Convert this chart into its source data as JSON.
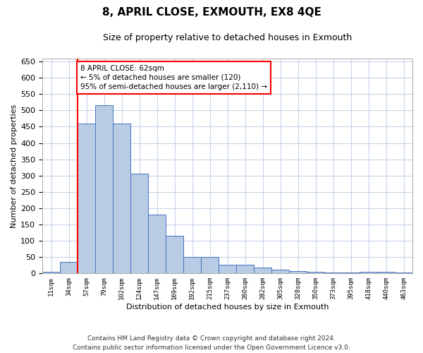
{
  "title": "8, APRIL CLOSE, EXMOUTH, EX8 4QE",
  "subtitle": "Size of property relative to detached houses in Exmouth",
  "xlabel": "Distribution of detached houses by size in Exmouth",
  "ylabel": "Number of detached properties",
  "categories": [
    "11sqm",
    "34sqm",
    "57sqm",
    "79sqm",
    "102sqm",
    "124sqm",
    "147sqm",
    "169sqm",
    "192sqm",
    "215sqm",
    "237sqm",
    "260sqm",
    "282sqm",
    "305sqm",
    "328sqm",
    "350sqm",
    "373sqm",
    "395sqm",
    "418sqm",
    "440sqm",
    "463sqm"
  ],
  "values": [
    5,
    35,
    460,
    515,
    460,
    305,
    180,
    115,
    50,
    50,
    27,
    27,
    18,
    12,
    8,
    5,
    2,
    2,
    5,
    5,
    2
  ],
  "bar_color": "#b8cce4",
  "bar_edge_color": "#4472c4",
  "vline_x_index": 2,
  "annotation_box_text": "8 APRIL CLOSE: 62sqm\n← 5% of detached houses are smaller (120)\n95% of semi-detached houses are larger (2,110) →",
  "ylim": [
    0,
    660
  ],
  "yticks": [
    0,
    50,
    100,
    150,
    200,
    250,
    300,
    350,
    400,
    450,
    500,
    550,
    600,
    650
  ],
  "footer_line1": "Contains HM Land Registry data © Crown copyright and database right 2024.",
  "footer_line2": "Contains public sector information licensed under the Open Government Licence v3.0.",
  "background_color": "#ffffff",
  "grid_color": "#c8d4e8"
}
